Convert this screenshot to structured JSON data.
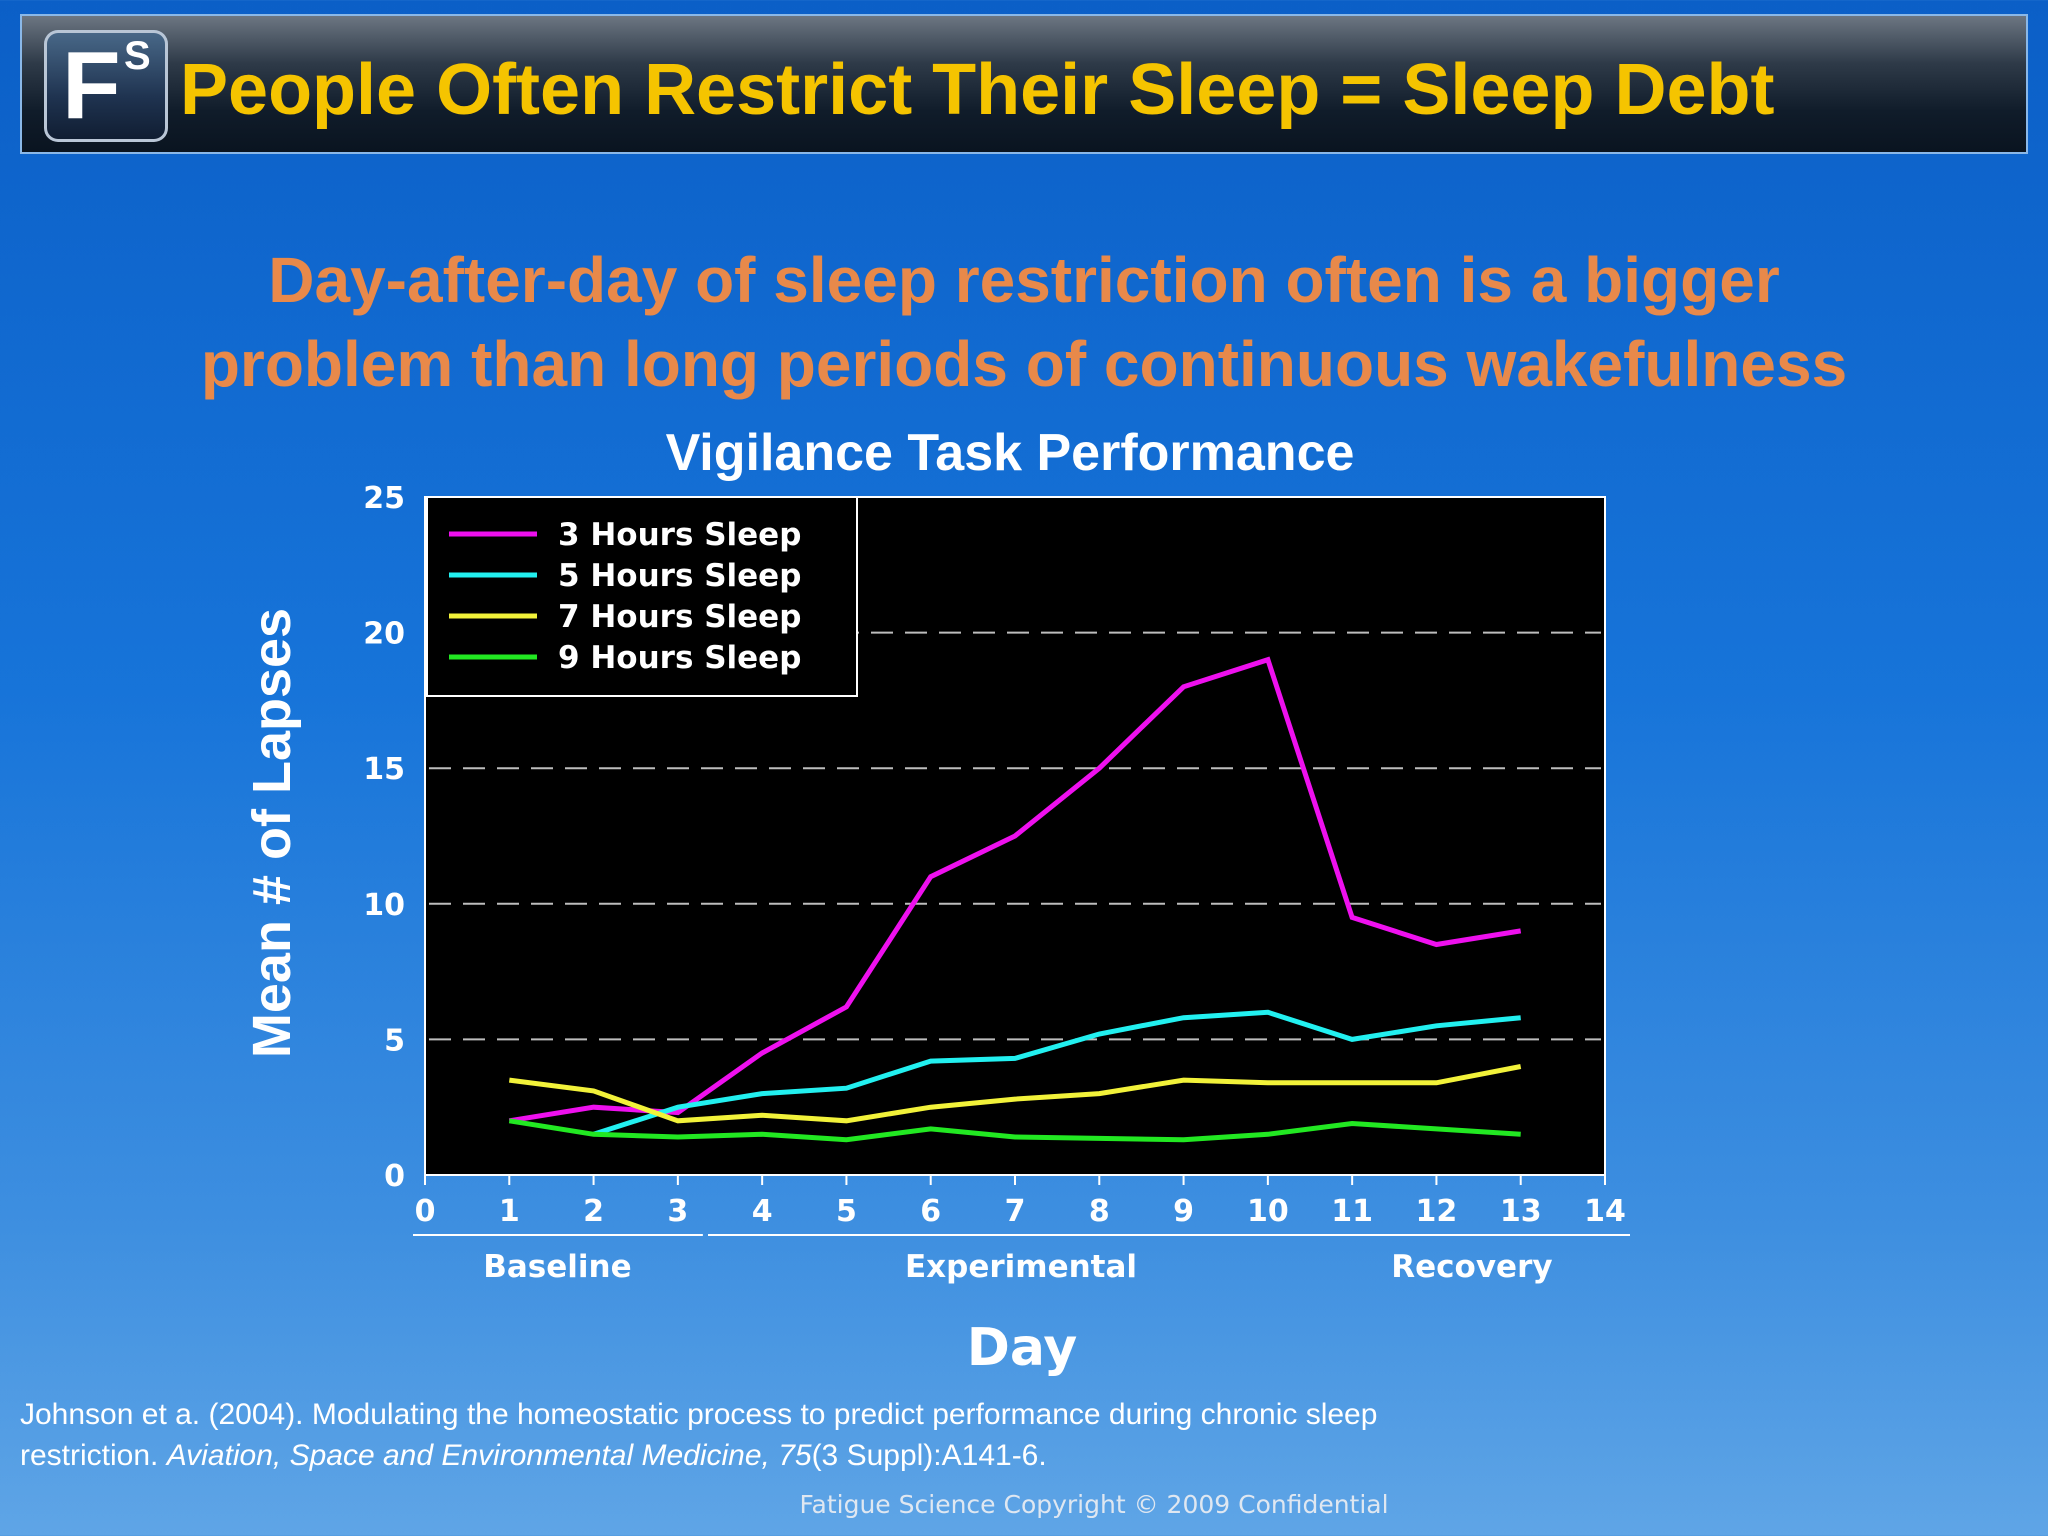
{
  "header": {
    "logo_letter": "F",
    "logo_superscript": "S",
    "title": "People Often Restrict Their Sleep = Sleep Debt"
  },
  "subtitle_line1": "Day-after-day of sleep restriction often is a bigger",
  "subtitle_line2": "problem than long periods of continuous wakefulness",
  "chart_data": {
    "type": "line",
    "title": "Vigilance Task Performance",
    "xlabel": "Day",
    "ylabel": "Mean # of Lapses",
    "xlim": [
      0,
      14
    ],
    "ylim": [
      0,
      25
    ],
    "x_ticks": [
      0,
      1,
      2,
      3,
      4,
      5,
      6,
      7,
      8,
      9,
      10,
      11,
      12,
      13,
      14
    ],
    "y_ticks": [
      0,
      5,
      10,
      15,
      20,
      25
    ],
    "grid": "horizontal-dashed",
    "legend_position": "top-left",
    "phases": [
      {
        "label": "Baseline",
        "start": 0,
        "end": 3
      },
      {
        "label": "Experimental",
        "start": 3.5,
        "end": 10.5
      },
      {
        "label": "Recovery",
        "start": 10.7,
        "end": 14
      }
    ],
    "series": [
      {
        "name": "3 Hours Sleep",
        "color": "#ee10ee",
        "x": [
          1,
          2,
          3,
          4,
          5,
          6,
          7,
          8,
          9,
          10,
          11,
          12,
          13
        ],
        "y": [
          2,
          2.5,
          2.3,
          4.5,
          6.2,
          11,
          12.5,
          15,
          18,
          19,
          9.5,
          8.5,
          9
        ]
      },
      {
        "name": "5 Hours Sleep",
        "color": "#22f0f0",
        "x": [
          2,
          3,
          4,
          5,
          6,
          7,
          8,
          9,
          10,
          11,
          12,
          13
        ],
        "y": [
          1.5,
          2.5,
          3,
          3.2,
          4.2,
          4.3,
          5.2,
          5.8,
          6,
          5,
          5.5,
          5.8
        ]
      },
      {
        "name": "7 Hours Sleep",
        "color": "#f2f23a",
        "x": [
          1,
          2,
          3,
          4,
          5,
          6,
          7,
          8,
          9,
          10,
          11,
          12,
          13
        ],
        "y": [
          3.5,
          3.1,
          2,
          2.2,
          2,
          2.5,
          2.8,
          3,
          3.5,
          3.4,
          3.4,
          3.4,
          4
        ]
      },
      {
        "name": "9 Hours Sleep",
        "color": "#22e822",
        "x": [
          1,
          2,
          3,
          4,
          5,
          6,
          7,
          8,
          9,
          10,
          11,
          12,
          13
        ],
        "y": [
          2,
          1.5,
          1.4,
          1.5,
          1.3,
          1.7,
          1.4,
          1.35,
          1.3,
          1.5,
          1.9,
          1.7,
          1.5
        ]
      }
    ]
  },
  "citation": {
    "line1": "Johnson et a. (2004). Modulating the homeostatic process to predict performance during chronic sleep",
    "line2_pre": "restriction.  ",
    "line2_ital": "Aviation, Space and Environmental Medicine, 75",
    "line2_post": "(3 Suppl):A141-6."
  },
  "copyright": "Fatigue Science Copyright © 2009 Confidential"
}
